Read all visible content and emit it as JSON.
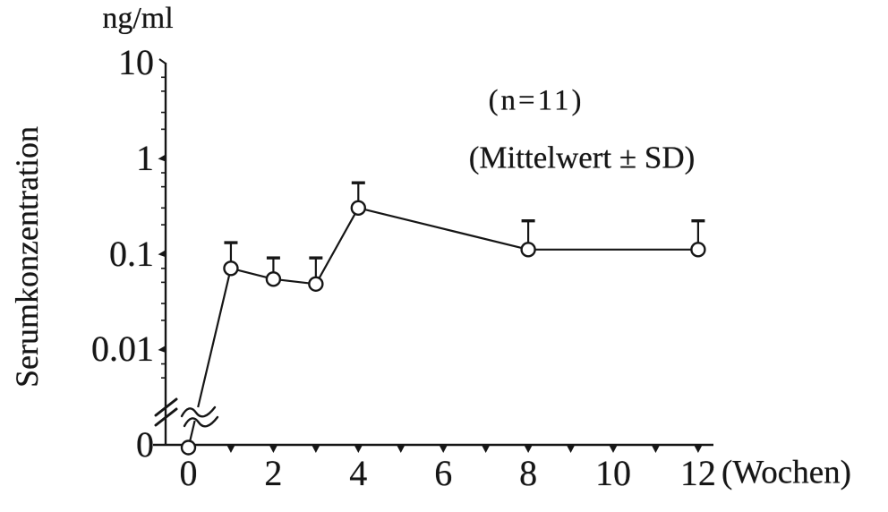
{
  "figure": {
    "unit_label": "ng/ml",
    "y_axis_title": "Serumkonzentration",
    "x_axis_unit": "(Wochen)",
    "annotation_n": "(n=11)",
    "annotation_stat": "(Mittelwert ± SD)",
    "ink_color": "#161616",
    "background": "#ffffff"
  },
  "chart_data": {
    "type": "line",
    "title": "",
    "ylabel": "Serumkonzentration (ng/ml)",
    "xlabel": "Wochen",
    "x": [
      0,
      1,
      2,
      3,
      4,
      8,
      12
    ],
    "series": [
      {
        "name": "Mittelwert",
        "values": [
          0,
          0.07,
          0.054,
          0.048,
          0.3,
          0.11,
          0.11
        ]
      }
    ],
    "mean_plus_sd": [
      null,
      0.13,
      0.09,
      0.09,
      0.55,
      0.22,
      0.22
    ],
    "error_bars": "upper only, mean + SD, capped",
    "n": 11,
    "marker": "open-circle",
    "y_scale": "log10, broken axis between 0 and 0.01",
    "y_tick_labels": [
      "10",
      "1",
      "0.1",
      "0.01",
      "0"
    ],
    "x_tick_labels": [
      "0",
      "2",
      "4",
      "6",
      "8",
      "10",
      "12"
    ],
    "x_minor_tick_weeks": [
      1,
      2,
      3,
      4,
      5,
      6,
      7,
      8,
      9,
      10,
      11,
      12
    ],
    "ylim": [
      0,
      10
    ],
    "xlim": [
      0,
      12
    ],
    "grid": "off",
    "legend": "none",
    "axis_breaks": [
      "y-axis double slash near origin",
      "wavy break on rising segment from week 0"
    ]
  }
}
